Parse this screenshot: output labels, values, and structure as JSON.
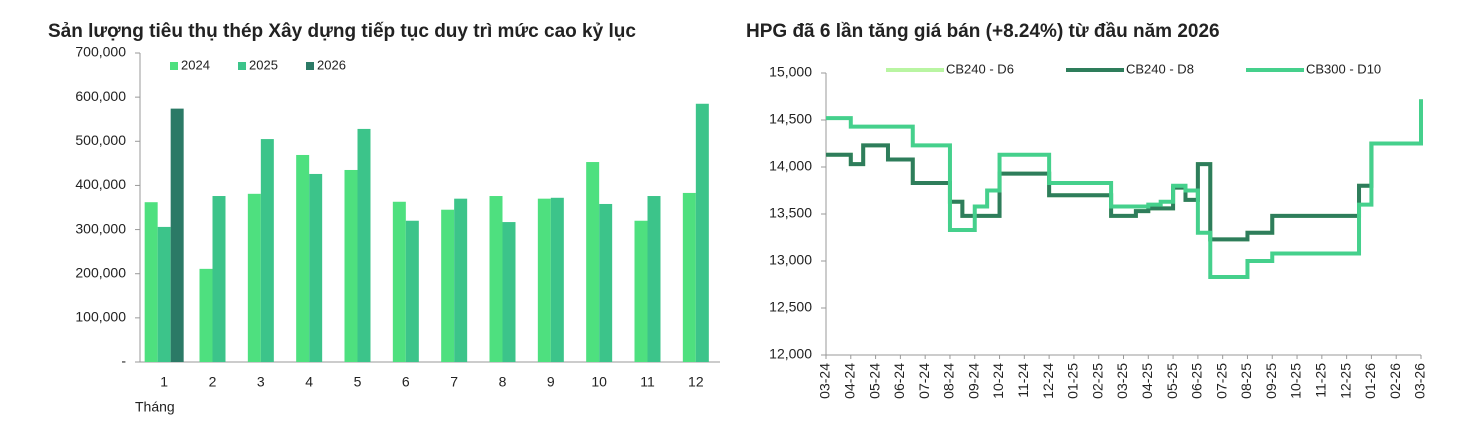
{
  "chart_data": [
    {
      "type": "bar",
      "title": "Sản lượng tiêu thụ thép Xây dựng tiếp tục duy trì mức cao kỷ lục",
      "x_label": "Tháng",
      "categories": [
        "1",
        "2",
        "3",
        "4",
        "5",
        "6",
        "7",
        "8",
        "9",
        "10",
        "11",
        "12"
      ],
      "series": [
        {
          "name": "2024",
          "color": "#4ee07f",
          "values": [
            362000,
            211000,
            381000,
            469000,
            435000,
            363000,
            345000,
            376000,
            370000,
            453000,
            320000,
            383000
          ]
        },
        {
          "name": "2025",
          "color": "#3cc48a",
          "values": [
            306000,
            376000,
            505000,
            426000,
            528000,
            320000,
            370000,
            317000,
            372000,
            358000,
            376000,
            585000
          ]
        },
        {
          "name": "2026",
          "color": "#2b7a66",
          "values": [
            574000,
            null,
            null,
            null,
            null,
            null,
            null,
            null,
            null,
            null,
            null,
            null
          ]
        }
      ],
      "ylim": [
        0,
        700000
      ],
      "yticks": [
        {
          "value": 0,
          "label": "-"
        },
        {
          "value": 100000,
          "label": "100,000"
        },
        {
          "value": 200000,
          "label": "200,000"
        },
        {
          "value": 300000,
          "label": "300,000"
        },
        {
          "value": 400000,
          "label": "400,000"
        },
        {
          "value": 500000,
          "label": "500,000"
        },
        {
          "value": 600000,
          "label": "600,000"
        },
        {
          "value": 700000,
          "label": "700,000"
        }
      ],
      "grid": false,
      "legend": "top-left"
    },
    {
      "type": "line",
      "title": "HPG đã 6 lần tăng giá bán (+8.24%) từ đầu năm 2026",
      "categories": [
        "03-24",
        null,
        "04-24",
        null,
        "05-24",
        null,
        "06-24",
        null,
        "07-24",
        null,
        "08-24",
        null,
        "09-24",
        null,
        "10-24",
        null,
        "11-24",
        null,
        "12-24",
        null,
        "01-25",
        null,
        "02-25",
        null,
        "03-25",
        null,
        "04-25",
        null,
        "05-25",
        null,
        "06-25",
        null,
        "07-25",
        null,
        "08-25",
        null,
        "09-25",
        null,
        "10-25",
        null,
        "11-25",
        null,
        "12-25",
        null,
        "01-26",
        null,
        "02-26",
        null,
        "03-26"
      ],
      "series": [
        {
          "name": "CB240 - D6",
          "color": "#b9f5a2",
          "values": [
            14130,
            14130,
            14030,
            14230,
            14230,
            14080,
            14080,
            13830,
            13830,
            13830,
            13630,
            13480,
            13480,
            13480,
            13930,
            13930,
            13930,
            13930,
            13700,
            13700,
            13700,
            13700,
            13700,
            13480,
            13480,
            13530,
            13560,
            13560,
            13780,
            13650,
            14030,
            13230,
            13230,
            13230,
            13300,
            13300,
            13480,
            13480,
            13480,
            13480,
            13480,
            13480,
            13480,
            13800,
            14250,
            14250,
            14250,
            14250,
            14720
          ]
        },
        {
          "name": "CB240 - D8",
          "color": "#2e7d5b",
          "values": [
            14130,
            14130,
            14030,
            14230,
            14230,
            14080,
            14080,
            13830,
            13830,
            13830,
            13630,
            13480,
            13480,
            13480,
            13930,
            13930,
            13930,
            13930,
            13700,
            13700,
            13700,
            13700,
            13700,
            13480,
            13480,
            13530,
            13560,
            13560,
            13780,
            13650,
            14030,
            13230,
            13230,
            13230,
            13300,
            13300,
            13480,
            13480,
            13480,
            13480,
            13480,
            13480,
            13480,
            13800,
            14250,
            14250,
            14250,
            14250,
            14720
          ]
        },
        {
          "name": "CB300 - D10",
          "color": "#45d08c",
          "values": [
            14520,
            14520,
            14430,
            14430,
            14430,
            14430,
            14430,
            14230,
            14230,
            14230,
            13330,
            13330,
            13580,
            13750,
            14130,
            14130,
            14130,
            14130,
            13830,
            13830,
            13830,
            13830,
            13830,
            13580,
            13580,
            13580,
            13600,
            13630,
            13800,
            13750,
            13300,
            12830,
            12830,
            12830,
            13000,
            13000,
            13080,
            13080,
            13080,
            13080,
            13080,
            13080,
            13080,
            13600,
            14250,
            14250,
            14250,
            14250,
            14720
          ]
        }
      ],
      "ylim": [
        12000,
        15000
      ],
      "yticks": [
        {
          "value": 12000,
          "label": "12,000"
        },
        {
          "value": 12500,
          "label": "12,500"
        },
        {
          "value": 13000,
          "label": "13,000"
        },
        {
          "value": 13500,
          "label": "13,500"
        },
        {
          "value": 14000,
          "label": "14,000"
        },
        {
          "value": 14500,
          "label": "14,500"
        },
        {
          "value": 15000,
          "label": "15,000"
        }
      ],
      "grid": false,
      "legend": "top",
      "step": true
    }
  ]
}
